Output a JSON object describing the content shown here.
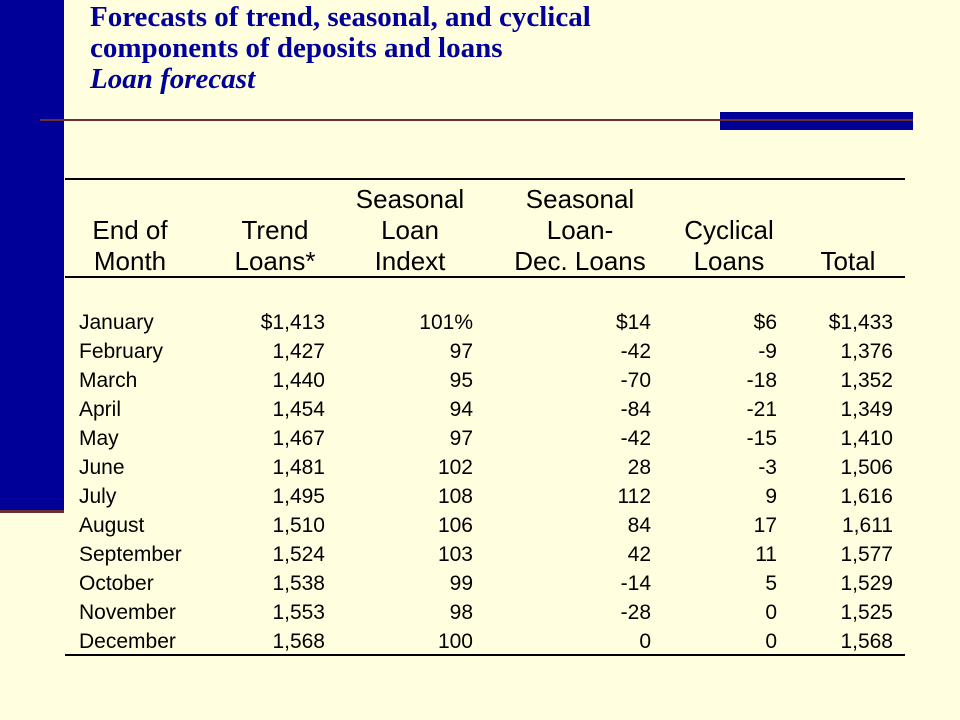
{
  "title": {
    "line1": "Forecasts of trend, seasonal, and cyclical",
    "line2": "components of deposits and loans",
    "subtitle": "Loan forecast"
  },
  "table": {
    "headers": [
      [
        "End of",
        "Month"
      ],
      [
        "Trend",
        "Loans*"
      ],
      [
        "Seasonal",
        "Loan",
        "Indext"
      ],
      [
        "Seasonal",
        "Loan-",
        "Dec. Loans"
      ],
      [
        "Cyclical",
        "Loans"
      ],
      [
        "Total"
      ]
    ],
    "rows": [
      [
        "January",
        "$1,413",
        "101%",
        "$14",
        "$6",
        "$1,433"
      ],
      [
        "February",
        "1,427",
        "97",
        "-42",
        "-9",
        "1,376"
      ],
      [
        "March",
        "1,440",
        "95",
        "-70",
        "-18",
        "1,352"
      ],
      [
        "April",
        "1,454",
        "94",
        "-84",
        "-21",
        "1,349"
      ],
      [
        "May",
        "1,467",
        "97",
        "-42",
        "-15",
        "1,410"
      ],
      [
        "June",
        "1,481",
        "102",
        "28",
        "-3",
        "1,506"
      ],
      [
        "July",
        "1,495",
        "108",
        "112",
        "9",
        "1,616"
      ],
      [
        "August",
        "1,510",
        "106",
        "84",
        "17",
        "1,611"
      ],
      [
        "September",
        "1,524",
        "103",
        "42",
        "11",
        "1,577"
      ],
      [
        "October",
        "1,538",
        "99",
        "-14",
        "5",
        "1,529"
      ],
      [
        "November",
        "1,553",
        "98",
        "-28",
        "0",
        "1,525"
      ],
      [
        "December",
        "1,568",
        "100",
        "0",
        "0",
        "1,568"
      ]
    ]
  },
  "colors": {
    "background": "#FFFFE0",
    "accent": "#000099",
    "rule": "#6B2E2E",
    "text": "#000000"
  }
}
